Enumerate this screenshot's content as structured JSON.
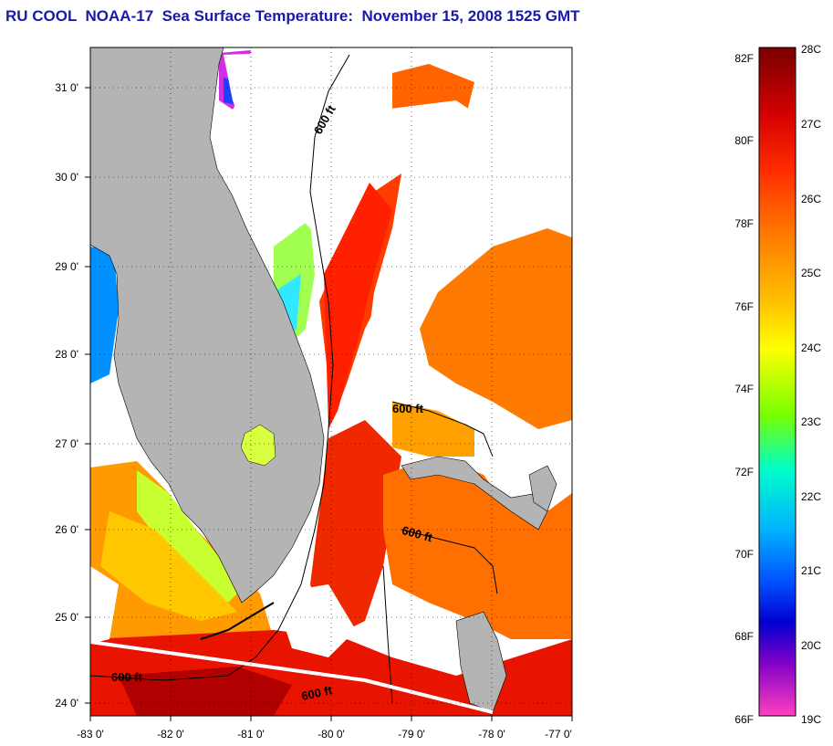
{
  "title": "RU COOL  NOAA-17  Sea Surface Temperature:  November 15, 2008 1525 GMT",
  "map": {
    "lon_range": [
      -83,
      -77
    ],
    "lat_range": [
      23.85,
      31.45
    ],
    "x_ticks": [
      "-83 0'",
      "-82 0'",
      "-81 0'",
      "-80 0'",
      "-79 0'",
      "-78 0'",
      "-77 0'"
    ],
    "y_ticks": [
      "31 0'",
      "30 0'",
      "29 0'",
      "28 0'",
      "27 0'",
      "26 0'",
      "25 0'",
      "24 0'"
    ],
    "grid": true,
    "grid_style": "dotted",
    "land_color": "#b4b4b4",
    "cloud_color": "#ffffff",
    "contour_labels": [
      "600 ft",
      "600 ft",
      "600 ft",
      "600 ft",
      "600 ft"
    ]
  },
  "colorbar": {
    "fahrenheit_labels": [
      "82F",
      "80F",
      "78F",
      "76F",
      "74F",
      "72F",
      "70F",
      "68F",
      "66F"
    ],
    "celsius_labels": [
      "28C",
      "27C",
      "26C",
      "25C",
      "24C",
      "23C",
      "22C",
      "21C",
      "20C",
      "19C"
    ],
    "range_c": [
      19,
      28
    ],
    "colors_top_to_bottom": [
      "#7a0000",
      "#d40000",
      "#ff2a00",
      "#ff7a00",
      "#ffc000",
      "#ffff00",
      "#78ff00",
      "#00ffc8",
      "#00b4ff",
      "#0050ff",
      "#0000d0",
      "#8000c8",
      "#ff40c0"
    ]
  }
}
